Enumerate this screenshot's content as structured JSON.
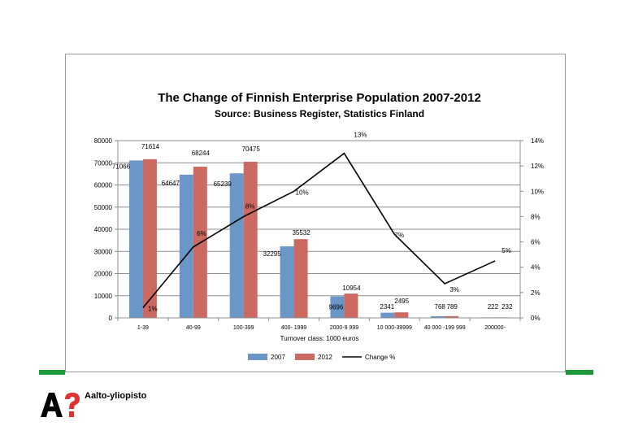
{
  "brand": {
    "name": "Aalto-yliopisto",
    "green": "#1e9a3c"
  },
  "chart_data": {
    "type": "bar",
    "title": "The Change of Finnish Enterprise Population 2007-2012",
    "subtitle": "Source: Business Register, Statistics Finland",
    "xlabel": "Turnover class: 1000 euros",
    "categories": [
      "1-39",
      "40-99",
      "100-399",
      "400- 1999",
      "2000-9 999",
      "10 000-39999",
      "40 000 -199 999",
      "200000-"
    ],
    "series": [
      {
        "name": "2007",
        "color": "#6a96c8",
        "values": [
          71066,
          64647,
          65239,
          32295,
          9696,
          2341,
          768,
          222
        ],
        "labels": [
          "71066",
          "64647",
          "65239",
          "32295",
          "9696",
          "2341",
          "768",
          "222"
        ]
      },
      {
        "name": "2012",
        "color": "#cc6960",
        "values": [
          71614,
          68244,
          70475,
          35532,
          10954,
          2495,
          789,
          232
        ],
        "labels": [
          "71614",
          "68244",
          "70475",
          "35532",
          "10954",
          "2495",
          "789",
          "232"
        ]
      },
      {
        "name": "Change %",
        "color": "#000000",
        "axis": "right",
        "values": [
          0.8,
          5.6,
          8.0,
          10.0,
          13.0,
          6.6,
          2.7,
          4.5
        ],
        "labels": [
          "1%",
          "6%",
          "8%",
          "10%",
          "13%",
          "7%",
          "3%",
          "5%"
        ]
      }
    ],
    "ylim": [
      0,
      80000
    ],
    "yticks": [
      "0",
      "10000",
      "20000",
      "30000",
      "40000",
      "50000",
      "60000",
      "70000",
      "80000"
    ],
    "y2lim": [
      0,
      14
    ],
    "y2ticks": [
      "0%",
      "2%",
      "4%",
      "6%",
      "8%",
      "10%",
      "12%",
      "14%"
    ],
    "grid": true,
    "legend": "bottom"
  }
}
